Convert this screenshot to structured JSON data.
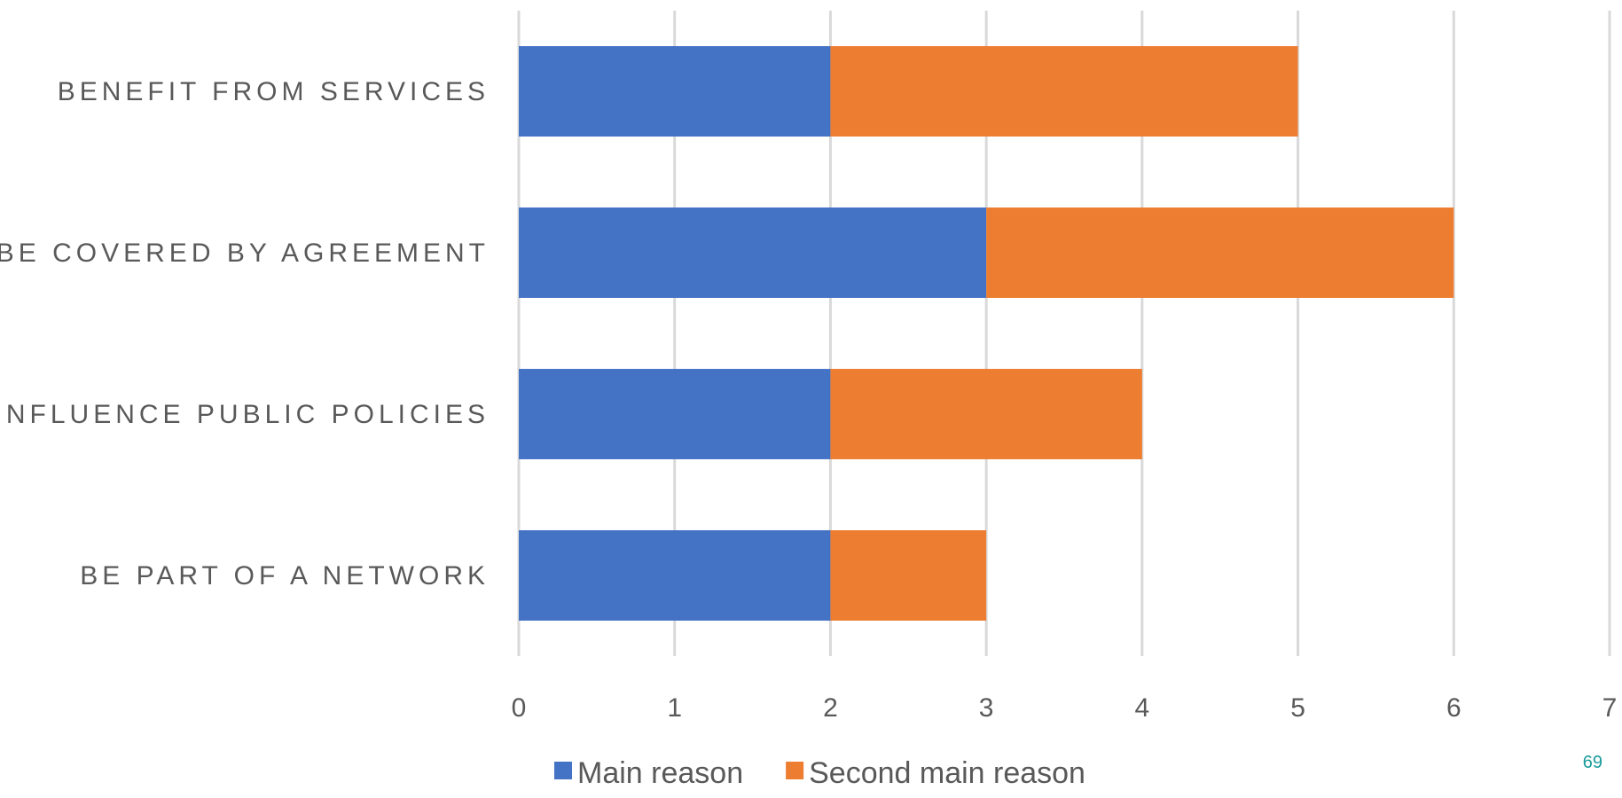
{
  "chart_data": {
    "type": "bar",
    "orientation": "horizontal",
    "stacked": true,
    "categories": [
      "BENEFIT FROM SERVICES",
      "BE COVERED BY AGREEMENT",
      "INFLUENCE PUBLIC POLICIES",
      "BE PART OF A NETWORK"
    ],
    "series": [
      {
        "name": "Main reason",
        "color": "#4472C4",
        "values": [
          2,
          3,
          2,
          2
        ]
      },
      {
        "name": "Second main reason",
        "color": "#ED7D31",
        "values": [
          3,
          3,
          2,
          1
        ]
      }
    ],
    "xlim": [
      0,
      7
    ],
    "xticks": [
      "0",
      "1",
      "2",
      "3",
      "4",
      "5",
      "6",
      "7"
    ],
    "grid": true,
    "legend_position": "bottom"
  },
  "page_number": "69"
}
